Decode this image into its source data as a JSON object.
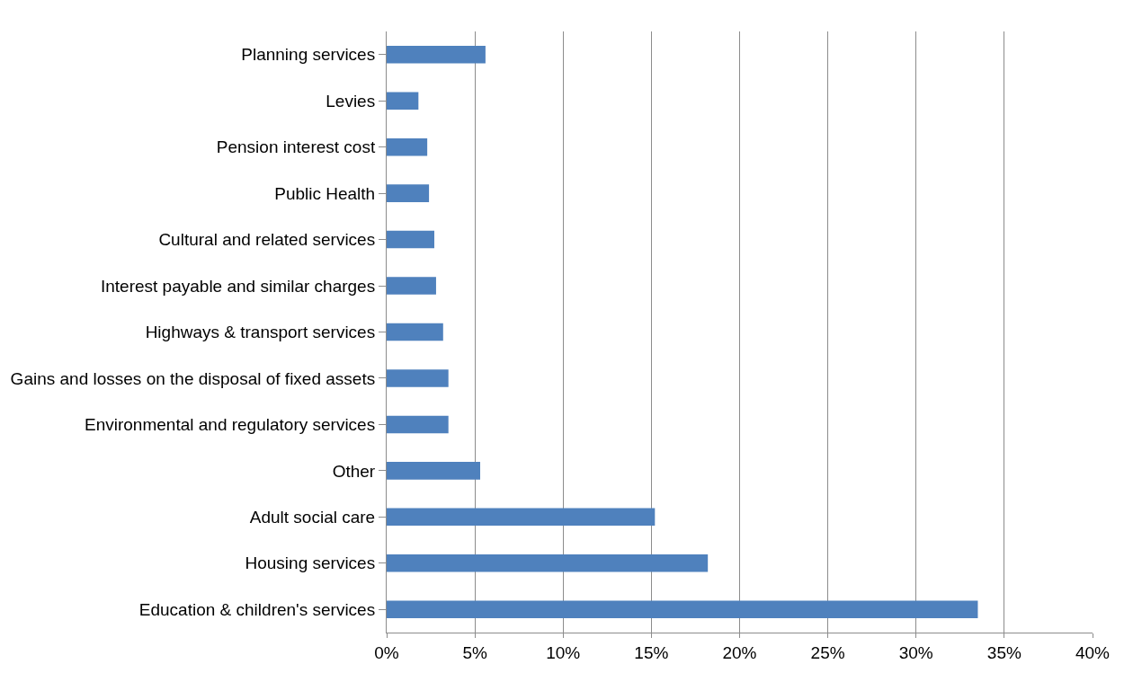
{
  "chart_data": {
    "type": "bar",
    "orientation": "horizontal",
    "categories": [
      "Planning services",
      "Levies",
      "Pension interest cost",
      "Public Health",
      "Cultural and related services",
      "Interest payable and similar charges",
      "Highways & transport services",
      "Gains and losses on the disposal of fixed assets",
      "Environmental and regulatory services",
      "Other",
      "Adult social care",
      "Housing services",
      "Education & children's services"
    ],
    "values": [
      5.6,
      1.8,
      2.3,
      2.4,
      2.7,
      2.8,
      3.2,
      3.5,
      3.5,
      5.3,
      15.2,
      18.2,
      33.5
    ],
    "color": "#4f81bd",
    "xlim": [
      0,
      40
    ],
    "xticks": [
      {
        "value": 0,
        "label": "0%"
      },
      {
        "value": 5,
        "label": "5%"
      },
      {
        "value": 10,
        "label": "10%"
      },
      {
        "value": 15,
        "label": "15%"
      },
      {
        "value": 20,
        "label": "20%"
      },
      {
        "value": 25,
        "label": "25%"
      },
      {
        "value": 30,
        "label": "30%"
      },
      {
        "value": 35,
        "label": "35%"
      },
      {
        "value": 40,
        "label": "40%"
      }
    ],
    "grid": "x"
  }
}
